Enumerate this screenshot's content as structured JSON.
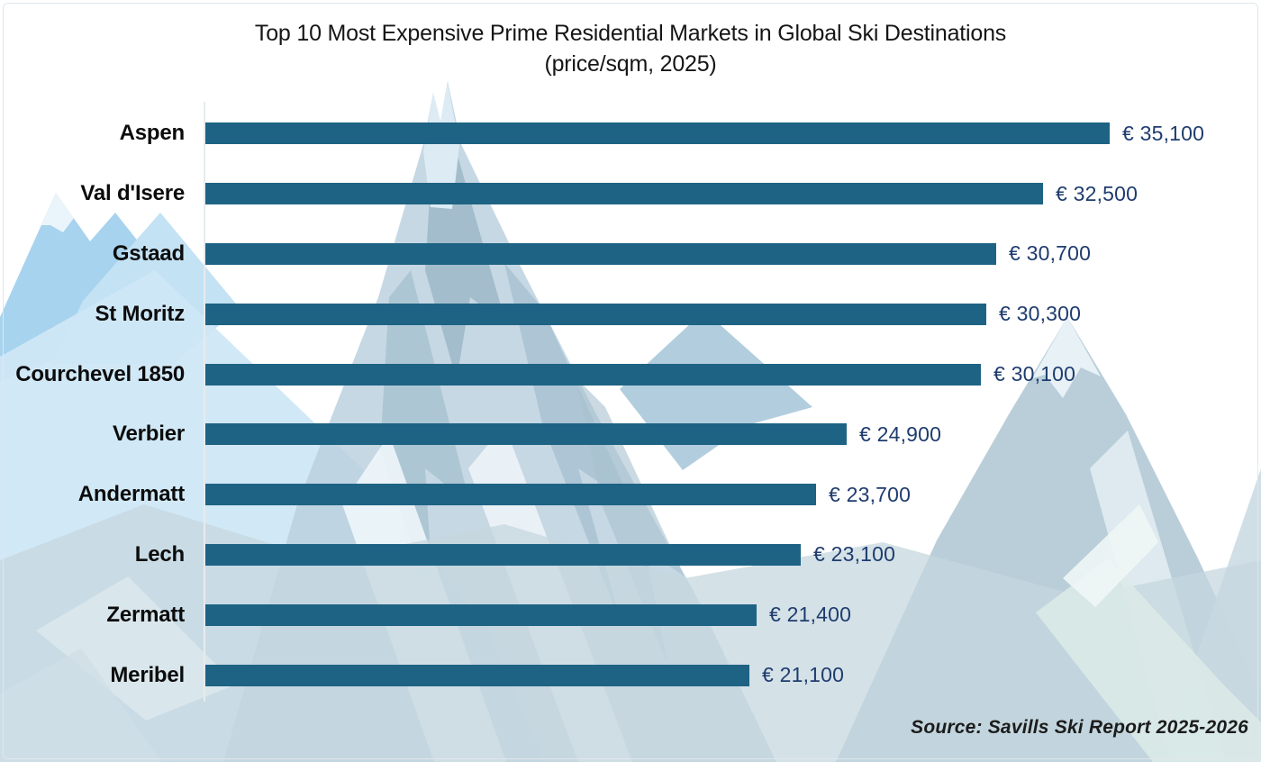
{
  "title": {
    "line1": "Top 10 Most Expensive Prime Residential Markets in Global Ski Destinations",
    "line2": "(price/sqm, 2025)"
  },
  "source": "Source: Savills Ski Report 2025-2026",
  "colors": {
    "bar": "#1e6384",
    "value_text": "#1e3c6e",
    "category_text": "#0c0c0c",
    "title_text": "#161616",
    "axis_line": "#e7ebed",
    "background": "#ffffff"
  },
  "chart_data": {
    "type": "bar",
    "orientation": "horizontal",
    "title": "Top 10 Most Expensive Prime Residential Markets in Global Ski Destinations (price/sqm, 2025)",
    "xlabel": "",
    "ylabel": "",
    "xlim": [
      0,
      35100
    ],
    "grid": false,
    "legend": false,
    "categories": [
      "Aspen",
      "Val d'Isere",
      "Gstaad",
      "St Moritz",
      "Courchevel 1850",
      "Verbier",
      "Andermatt",
      "Lech",
      "Zermatt",
      "Meribel"
    ],
    "values": [
      35100,
      32500,
      30700,
      30300,
      30100,
      24900,
      23700,
      23100,
      21400,
      21100
    ],
    "value_labels": [
      "€ 35,100",
      "€ 32,500",
      "€ 30,700",
      "€ 30,300",
      "€ 30,100",
      "€ 24,900",
      "€ 23,700",
      "€ 23,100",
      "€ 21,400",
      "€ 21,100"
    ],
    "unit": "EUR per sqm",
    "annotations": [
      "Source: Savills Ski Report 2025-2026"
    ]
  }
}
